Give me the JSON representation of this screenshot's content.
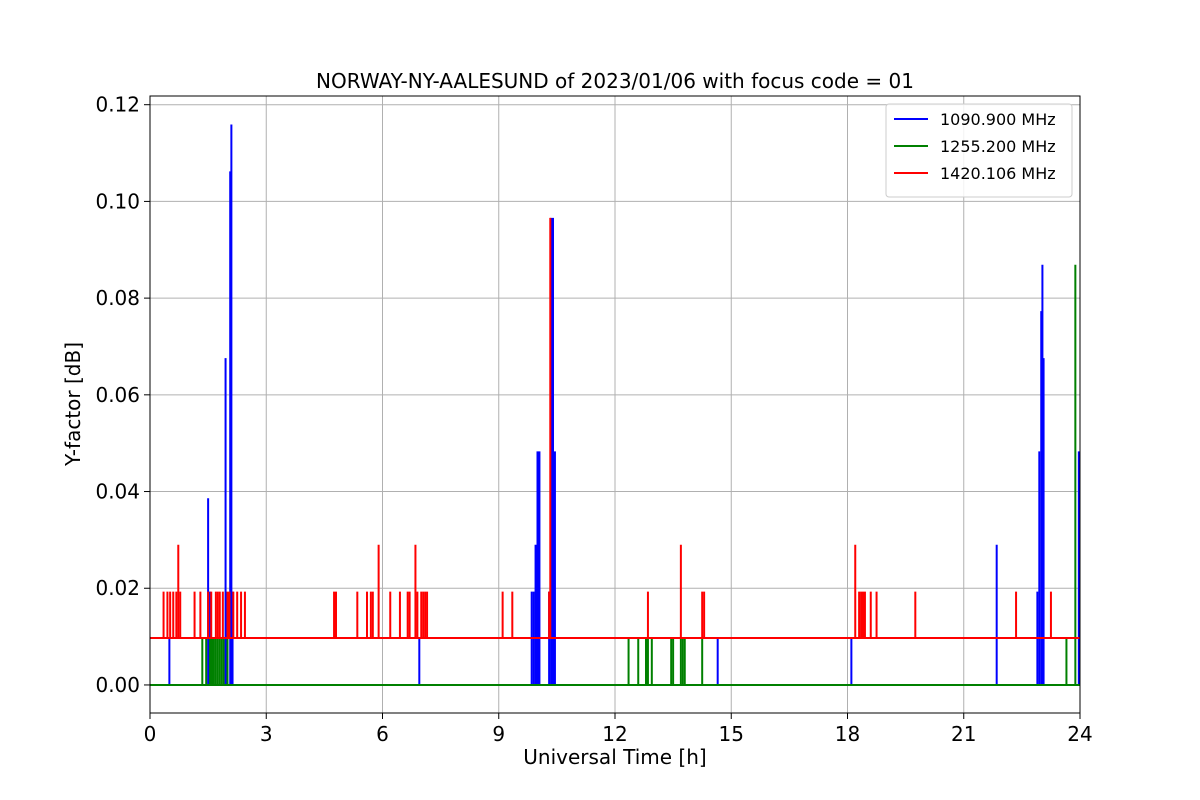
{
  "chart_data": {
    "type": "line",
    "title": "NORWAY-NY-AALESUND of 2023/01/06 with focus code = 01",
    "xlabel": "Universal Time [h]",
    "ylabel": "Y-factor [dB]",
    "xlim": [
      0,
      24
    ],
    "ylim": [
      -0.0058,
      0.1218
    ],
    "xticks": [
      0,
      3,
      6,
      9,
      12,
      15,
      18,
      21,
      24
    ],
    "xtick_labels": [
      "0",
      "3",
      "6",
      "9",
      "12",
      "15",
      "18",
      "21",
      "24"
    ],
    "yticks": [
      0,
      0.02,
      0.04,
      0.06,
      0.08,
      0.1,
      0.12
    ],
    "ytick_labels": [
      "0.00",
      "0.02",
      "0.04",
      "0.06",
      "0.08",
      "0.10",
      "0.12"
    ],
    "grid": true,
    "legend_position": "top-right",
    "series": [
      {
        "name": "1090.900 MHz",
        "color": "#0000ff",
        "baseline": 0.0,
        "spikes": [
          [
            0.5,
            0.0097
          ],
          [
            1.5,
            0.0386
          ],
          [
            1.55,
            0.0193
          ],
          [
            1.95,
            0.0676
          ],
          [
            2.07,
            0.1062
          ],
          [
            2.1,
            0.1159
          ],
          [
            2.13,
            0.0193
          ],
          [
            6.95,
            0.0097
          ],
          [
            9.85,
            0.0193
          ],
          [
            9.9,
            0.0193
          ],
          [
            9.95,
            0.029
          ],
          [
            10.0,
            0.0483
          ],
          [
            10.05,
            0.0483
          ],
          [
            10.3,
            0.0193
          ],
          [
            10.35,
            0.0966
          ],
          [
            10.4,
            0.0966
          ],
          [
            10.45,
            0.0483
          ],
          [
            14.65,
            0.0097
          ],
          [
            18.1,
            0.0097
          ],
          [
            21.85,
            0.029
          ],
          [
            22.9,
            0.0193
          ],
          [
            22.95,
            0.0483
          ],
          [
            23.0,
            0.0773
          ],
          [
            23.03,
            0.0869
          ],
          [
            23.06,
            0.0676
          ],
          [
            23.97,
            0.0483
          ]
        ]
      },
      {
        "name": "1255.200 MHz",
        "color": "#008000",
        "baseline": 0.0,
        "spikes": [
          [
            1.35,
            0.0097
          ],
          [
            1.45,
            0.0097
          ],
          [
            1.55,
            0.0097
          ],
          [
            1.6,
            0.0097
          ],
          [
            1.65,
            0.0097
          ],
          [
            1.7,
            0.0097
          ],
          [
            1.75,
            0.0097
          ],
          [
            1.8,
            0.0097
          ],
          [
            1.85,
            0.0097
          ],
          [
            1.9,
            0.0097
          ],
          [
            2.0,
            0.0097
          ],
          [
            12.35,
            0.0097
          ],
          [
            12.6,
            0.0097
          ],
          [
            12.8,
            0.0097
          ],
          [
            12.85,
            0.0097
          ],
          [
            12.95,
            0.0097
          ],
          [
            13.45,
            0.0097
          ],
          [
            13.5,
            0.0097
          ],
          [
            13.7,
            0.0097
          ],
          [
            13.75,
            0.0097
          ],
          [
            13.8,
            0.0097
          ],
          [
            14.25,
            0.0097
          ],
          [
            23.65,
            0.0097
          ],
          [
            23.88,
            0.0869
          ]
        ]
      },
      {
        "name": "1420.106 MHz",
        "color": "#ff0000",
        "baseline": 0.0097,
        "spikes": [
          [
            0.35,
            0.0193
          ],
          [
            0.45,
            0.0193
          ],
          [
            0.52,
            0.0193
          ],
          [
            0.6,
            0.0193
          ],
          [
            0.68,
            0.0193
          ],
          [
            0.73,
            0.029
          ],
          [
            0.78,
            0.0193
          ],
          [
            1.15,
            0.0193
          ],
          [
            1.3,
            0.0193
          ],
          [
            1.5,
            0.0193
          ],
          [
            1.58,
            0.0193
          ],
          [
            1.7,
            0.0193
          ],
          [
            1.75,
            0.0193
          ],
          [
            1.8,
            0.0193
          ],
          [
            1.88,
            0.0193
          ],
          [
            2.0,
            0.0193
          ],
          [
            2.05,
            0.0193
          ],
          [
            2.15,
            0.0193
          ],
          [
            2.25,
            0.0193
          ],
          [
            2.35,
            0.0193
          ],
          [
            2.45,
            0.0193
          ],
          [
            4.75,
            0.0193
          ],
          [
            4.8,
            0.0193
          ],
          [
            5.35,
            0.0193
          ],
          [
            5.6,
            0.0193
          ],
          [
            5.7,
            0.0193
          ],
          [
            5.75,
            0.0193
          ],
          [
            5.9,
            0.029
          ],
          [
            6.2,
            0.0193
          ],
          [
            6.45,
            0.0193
          ],
          [
            6.65,
            0.0193
          ],
          [
            6.7,
            0.0193
          ],
          [
            6.85,
            0.029
          ],
          [
            6.9,
            0.0193
          ],
          [
            7.0,
            0.0193
          ],
          [
            7.05,
            0.0193
          ],
          [
            7.1,
            0.0193
          ],
          [
            7.15,
            0.0193
          ],
          [
            9.1,
            0.0193
          ],
          [
            9.35,
            0.0193
          ],
          [
            10.3,
            0.0193
          ],
          [
            10.33,
            0.0966
          ],
          [
            12.85,
            0.0193
          ],
          [
            13.7,
            0.029
          ],
          [
            14.25,
            0.0193
          ],
          [
            14.3,
            0.0193
          ],
          [
            18.2,
            0.029
          ],
          [
            18.3,
            0.0193
          ],
          [
            18.35,
            0.0193
          ],
          [
            18.4,
            0.0193
          ],
          [
            18.45,
            0.0193
          ],
          [
            18.6,
            0.0193
          ],
          [
            18.75,
            0.0193
          ],
          [
            19.75,
            0.0193
          ],
          [
            22.35,
            0.0193
          ],
          [
            23.25,
            0.0193
          ]
        ]
      }
    ]
  }
}
